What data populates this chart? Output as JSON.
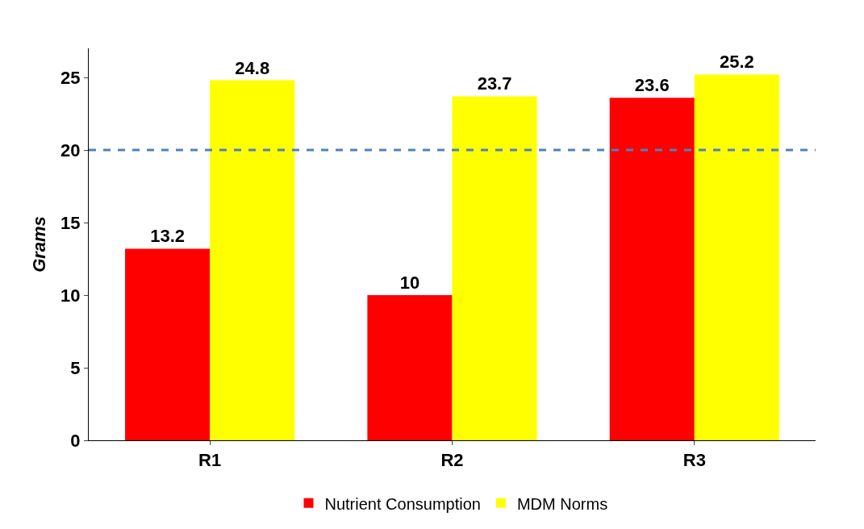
{
  "chart_data": {
    "type": "bar",
    "ylabel": "Grams",
    "categories": [
      "R1",
      "R2",
      "R3"
    ],
    "series": [
      {
        "name": "Nutrient Consumption",
        "color": "#ff0000",
        "values": [
          13.2,
          10,
          23.6
        ]
      },
      {
        "name": "MDM Norms",
        "color": "#ffff00",
        "values": [
          24.8,
          23.7,
          25.2
        ]
      }
    ],
    "ylim": [
      0,
      27
    ],
    "yticks": [
      0,
      5,
      10,
      15,
      20,
      25
    ],
    "grid": false,
    "legend": "bottom",
    "data_labels": true,
    "ref_lines": [
      {
        "axis": "y",
        "value": 20,
        "color": "#4f81bd",
        "line_style": "dashed"
      }
    ]
  }
}
